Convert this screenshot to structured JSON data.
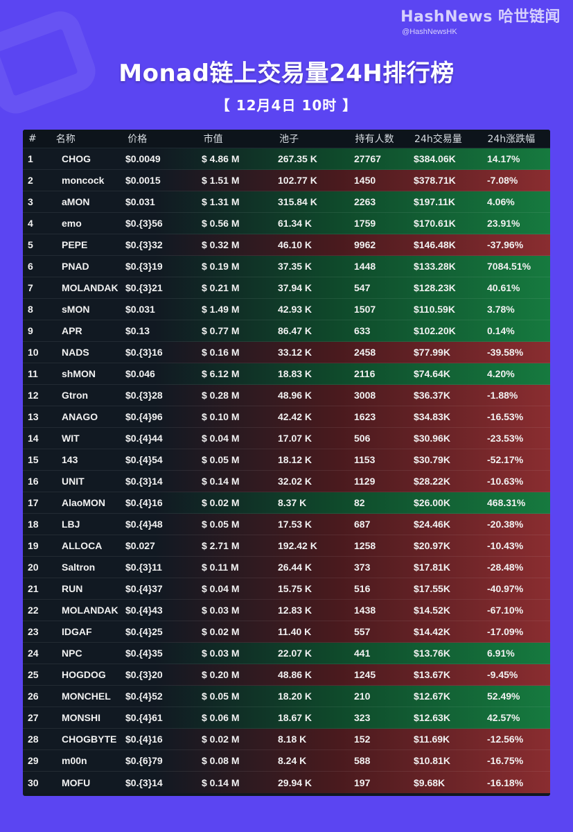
{
  "brand": {
    "name": "HashNews 哈世链闻",
    "handle": "@HashNewsHK"
  },
  "title": "Monad链上交易量24H排行榜",
  "subtitle": "【 12月4日  10时 】",
  "table": {
    "headers": [
      "#",
      "名称",
      "价格",
      "市值",
      "池子",
      "持有人数",
      "24h交易量",
      "24h涨跌幅"
    ],
    "rows": [
      {
        "rank": "1",
        "name": "CHOG",
        "price": "$0.0049",
        "mcap": "$ 4.86 M",
        "pool": "267.35 K",
        "holders": "27767",
        "volume": "$384.06K",
        "change": "14.17%",
        "dir": "pos"
      },
      {
        "rank": "2",
        "name": "moncock",
        "price": "$0.0015",
        "mcap": "$ 1.51 M",
        "pool": "102.77 K",
        "holders": "1450",
        "volume": "$378.71K",
        "change": "-7.08%",
        "dir": "neg"
      },
      {
        "rank": "3",
        "name": "aMON",
        "price": "$0.031",
        "mcap": "$ 1.31 M",
        "pool": "315.84 K",
        "holders": "2263",
        "volume": "$197.11K",
        "change": "4.06%",
        "dir": "pos"
      },
      {
        "rank": "4",
        "name": "emo",
        "price": "$0.{3}56",
        "mcap": "$ 0.56 M",
        "pool": "61.34 K",
        "holders": "1759",
        "volume": "$170.61K",
        "change": "23.91%",
        "dir": "pos"
      },
      {
        "rank": "5",
        "name": "PEPE",
        "price": "$0.{3}32",
        "mcap": "$ 0.32 M",
        "pool": "46.10 K",
        "holders": "9962",
        "volume": "$146.48K",
        "change": "-37.96%",
        "dir": "neg"
      },
      {
        "rank": "6",
        "name": "PNAD",
        "price": "$0.{3}19",
        "mcap": "$ 0.19 M",
        "pool": "37.35 K",
        "holders": "1448",
        "volume": "$133.28K",
        "change": "7084.51%",
        "dir": "pos"
      },
      {
        "rank": "7",
        "name": "MOLANDAK",
        "price": "$0.{3}21",
        "mcap": "$ 0.21 M",
        "pool": "37.94 K",
        "holders": "547",
        "volume": "$128.23K",
        "change": "40.61%",
        "dir": "pos"
      },
      {
        "rank": "8",
        "name": "sMON",
        "price": "$0.031",
        "mcap": "$ 1.49 M",
        "pool": "42.93 K",
        "holders": "1507",
        "volume": "$110.59K",
        "change": "3.78%",
        "dir": "pos"
      },
      {
        "rank": "9",
        "name": "APR",
        "price": "$0.13",
        "mcap": "$ 0.77 M",
        "pool": "86.47 K",
        "holders": "633",
        "volume": "$102.20K",
        "change": "0.14%",
        "dir": "pos"
      },
      {
        "rank": "10",
        "name": "NADS",
        "price": "$0.{3}16",
        "mcap": "$ 0.16 M",
        "pool": "33.12 K",
        "holders": "2458",
        "volume": "$77.99K",
        "change": "-39.58%",
        "dir": "neg"
      },
      {
        "rank": "11",
        "name": "shMON",
        "price": "$0.046",
        "mcap": "$ 6.12 M",
        "pool": "18.83 K",
        "holders": "2116",
        "volume": "$74.64K",
        "change": "4.20%",
        "dir": "pos"
      },
      {
        "rank": "12",
        "name": "Gtron",
        "price": "$0.{3}28",
        "mcap": "$ 0.28 M",
        "pool": "48.96 K",
        "holders": "3008",
        "volume": "$36.37K",
        "change": "-1.88%",
        "dir": "neg"
      },
      {
        "rank": "13",
        "name": "ANAGO",
        "price": "$0.{4}96",
        "mcap": "$ 0.10 M",
        "pool": "42.42 K",
        "holders": "1623",
        "volume": "$34.83K",
        "change": "-16.53%",
        "dir": "neg"
      },
      {
        "rank": "14",
        "name": "WIT",
        "price": "$0.{4}44",
        "mcap": "$ 0.04 M",
        "pool": "17.07 K",
        "holders": "506",
        "volume": "$30.96K",
        "change": "-23.53%",
        "dir": "neg"
      },
      {
        "rank": "15",
        "name": "143",
        "price": "$0.{4}54",
        "mcap": "$ 0.05 M",
        "pool": "18.12 K",
        "holders": "1153",
        "volume": "$30.79K",
        "change": "-52.17%",
        "dir": "neg"
      },
      {
        "rank": "16",
        "name": "UNIT",
        "price": "$0.{3}14",
        "mcap": "$ 0.14 M",
        "pool": "32.02 K",
        "holders": "1129",
        "volume": "$28.22K",
        "change": "-10.63%",
        "dir": "neg"
      },
      {
        "rank": "17",
        "name": "AlaoMON",
        "price": "$0.{4}16",
        "mcap": "$ 0.02 M",
        "pool": "8.37 K",
        "holders": "82",
        "volume": "$26.00K",
        "change": "468.31%",
        "dir": "pos"
      },
      {
        "rank": "18",
        "name": "LBJ",
        "price": "$0.{4}48",
        "mcap": "$ 0.05 M",
        "pool": "17.53 K",
        "holders": "687",
        "volume": "$24.46K",
        "change": "-20.38%",
        "dir": "neg"
      },
      {
        "rank": "19",
        "name": "ALLOCA",
        "price": "$0.027",
        "mcap": "$ 2.71 M",
        "pool": "192.42 K",
        "holders": "1258",
        "volume": "$20.97K",
        "change": "-10.43%",
        "dir": "neg"
      },
      {
        "rank": "20",
        "name": "Saltron",
        "price": "$0.{3}11",
        "mcap": "$ 0.11 M",
        "pool": "26.44 K",
        "holders": "373",
        "volume": "$17.81K",
        "change": "-28.48%",
        "dir": "neg"
      },
      {
        "rank": "21",
        "name": "RUN",
        "price": "$0.{4}37",
        "mcap": "$ 0.04 M",
        "pool": "15.75 K",
        "holders": "516",
        "volume": "$17.55K",
        "change": "-40.97%",
        "dir": "neg"
      },
      {
        "rank": "22",
        "name": "MOLANDAK",
        "price": "$0.{4}43",
        "mcap": "$ 0.03 M",
        "pool": "12.83 K",
        "holders": "1438",
        "volume": "$14.52K",
        "change": "-67.10%",
        "dir": "neg"
      },
      {
        "rank": "23",
        "name": "IDGAF",
        "price": "$0.{4}25",
        "mcap": "$ 0.02 M",
        "pool": "11.40 K",
        "holders": "557",
        "volume": "$14.42K",
        "change": "-17.09%",
        "dir": "neg"
      },
      {
        "rank": "24",
        "name": "NPC",
        "price": "$0.{4}35",
        "mcap": "$ 0.03 M",
        "pool": "22.07 K",
        "holders": "441",
        "volume": "$13.76K",
        "change": "6.91%",
        "dir": "pos"
      },
      {
        "rank": "25",
        "name": "HOGDOG",
        "price": "$0.{3}20",
        "mcap": "$ 0.20 M",
        "pool": "48.86 K",
        "holders": "1245",
        "volume": "$13.67K",
        "change": "-9.45%",
        "dir": "neg"
      },
      {
        "rank": "26",
        "name": "MONCHEL",
        "price": "$0.{4}52",
        "mcap": "$ 0.05 M",
        "pool": "18.20 K",
        "holders": "210",
        "volume": "$12.67K",
        "change": "52.49%",
        "dir": "pos"
      },
      {
        "rank": "27",
        "name": "MONSHI",
        "price": "$0.{4}61",
        "mcap": "$ 0.06 M",
        "pool": "18.67 K",
        "holders": "323",
        "volume": "$12.63K",
        "change": "42.57%",
        "dir": "pos"
      },
      {
        "rank": "28",
        "name": "CHOGBYTE",
        "price": "$0.{4}16",
        "mcap": "$ 0.02 M",
        "pool": "8.18 K",
        "holders": "152",
        "volume": "$11.69K",
        "change": "-12.56%",
        "dir": "neg"
      },
      {
        "rank": "29",
        "name": "m00n",
        "price": "$0.{6}79",
        "mcap": "$ 0.08 M",
        "pool": "8.24 K",
        "holders": "588",
        "volume": "$10.81K",
        "change": "-16.75%",
        "dir": "neg"
      },
      {
        "rank": "30",
        "name": "MOFU",
        "price": "$0.{3}14",
        "mcap": "$ 0.14 M",
        "pool": "29.94 K",
        "holders": "197",
        "volume": "$9.68K",
        "change": "-16.18%",
        "dir": "neg"
      }
    ]
  }
}
